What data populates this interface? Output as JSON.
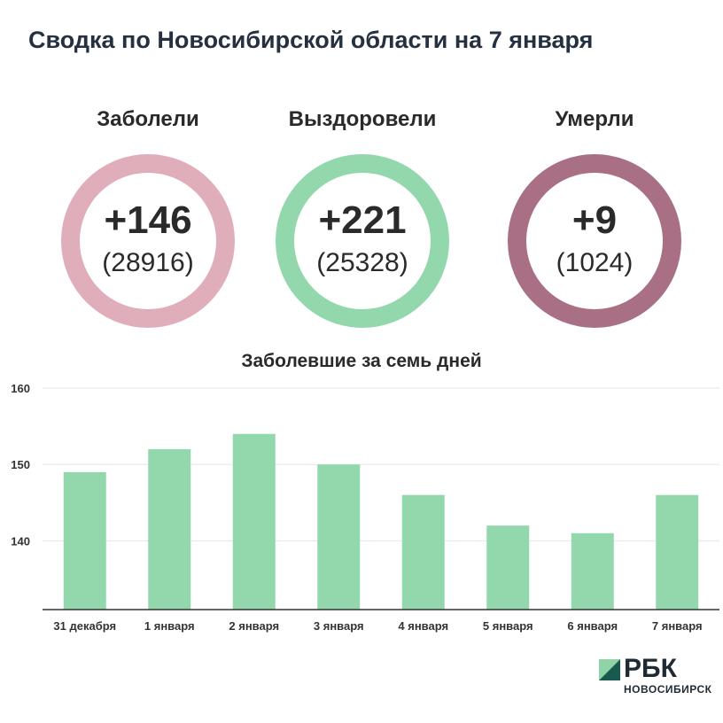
{
  "header": {
    "title": "Сводка по Новосибирской области на 7 января"
  },
  "stats": [
    {
      "label": "Заболели",
      "value": "+146",
      "total": "(28916)",
      "color": "#e0aeba"
    },
    {
      "label": "Выздоровели",
      "value": "+221",
      "total": "(25328)",
      "color": "#93d8ac"
    },
    {
      "label": "Умерли",
      "value": "+9",
      "total": "(1024)",
      "color": "#a96f84"
    }
  ],
  "chart_data": {
    "type": "bar",
    "title": "Заболевшие за семь дней",
    "categories": [
      "31 декабря",
      "1 января",
      "2 января",
      "3 января",
      "4 января",
      "5 января",
      "6 января",
      "7 января"
    ],
    "values": [
      149,
      152,
      154,
      150,
      146,
      142,
      141,
      146
    ],
    "ylim": [
      131,
      160
    ],
    "yticks": [
      140,
      150,
      160
    ],
    "grid": true,
    "bar_color": "#93d8ac"
  },
  "logo": {
    "name": "РБК",
    "subtitle": "НОВОСИБИРСК",
    "colors": {
      "light": "#8fd4a6",
      "dark": "#1a5a4e"
    }
  }
}
